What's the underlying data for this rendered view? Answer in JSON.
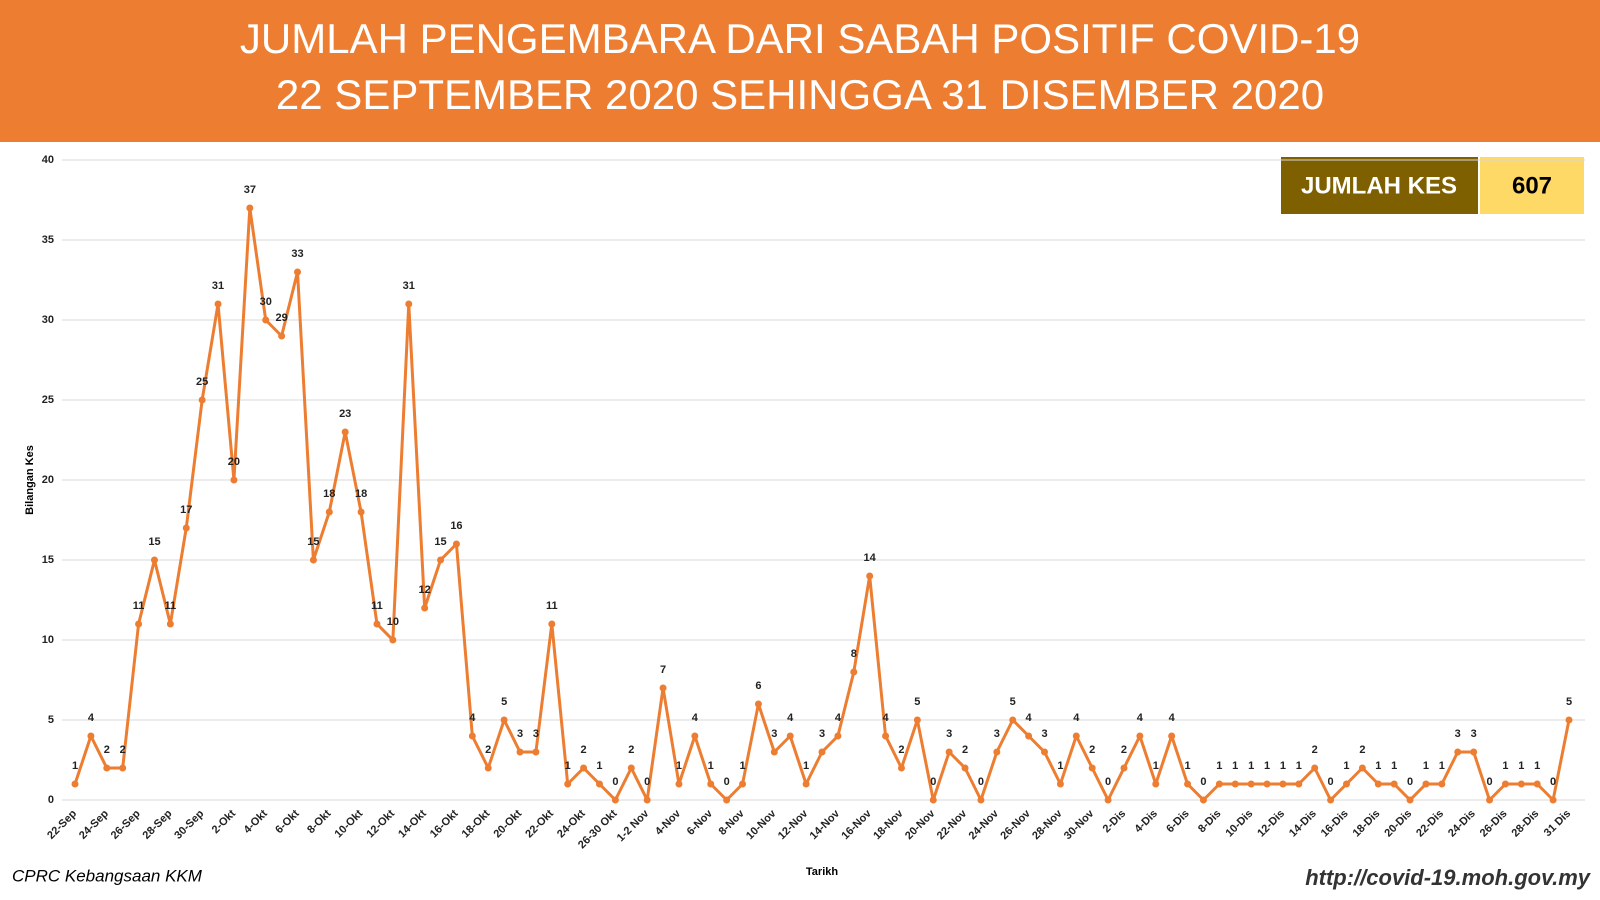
{
  "chart_data": {
    "type": "line",
    "title": "JUMLAH PENGEMBARA DARI SABAH POSITIF COVID-19",
    "subtitle": "22 SEPTEMBER 2020 SEHINGGA 31 DISEMBER 2020",
    "total_label": "JUMLAH KES",
    "total": 607,
    "xlabel": "Tarikh",
    "ylabel": "Bilangan Kes",
    "source": "CPRC Kebangsaan KKM",
    "url": "http://covid-19.moh.gov.my",
    "color": "#ED7D31",
    "grid": true,
    "ylim": [
      0,
      40
    ],
    "yticks": [
      0,
      5,
      10,
      15,
      20,
      25,
      30,
      35,
      40
    ],
    "categories": [
      "22-Sep",
      null,
      "24-Sep",
      null,
      "26-Sep",
      null,
      "28-Sep",
      null,
      "30-Sep",
      null,
      "2-Okt",
      null,
      "4-Okt",
      null,
      "6-Okt",
      null,
      "8-Okt",
      null,
      "10-Okt",
      null,
      "12-Okt",
      null,
      "14-Okt",
      null,
      "16-Okt",
      null,
      "18-Okt",
      null,
      "20-Okt",
      null,
      "22-Okt",
      null,
      "24-Okt",
      null,
      "26-30 Okt",
      null,
      "1-2 Nov",
      null,
      "4-Nov",
      null,
      "6-Nov",
      null,
      "8-Nov",
      null,
      "10-Nov",
      null,
      "12-Nov",
      null,
      "14-Nov",
      null,
      "16-Nov",
      null,
      "18-Nov",
      null,
      "20-Nov",
      null,
      "22-Nov",
      null,
      "24-Nov",
      null,
      "26-Nov",
      null,
      "28-Nov",
      null,
      "30-Nov",
      null,
      "2-Dis",
      null,
      "4-Dis",
      null,
      "6-Dis",
      null,
      "8-Dis",
      null,
      "10-Dis",
      null,
      "12-Dis",
      null,
      "14-Dis",
      null,
      "16-Dis",
      null,
      "18-Dis",
      null,
      "20-Dis",
      null,
      "22-Dis",
      null,
      "24-Dis",
      null,
      "26-Dis",
      null,
      "28-Dis",
      null,
      "31 Dis"
    ],
    "values": [
      1,
      4,
      2,
      2,
      11,
      15,
      11,
      17,
      25,
      31,
      20,
      37,
      30,
      29,
      33,
      15,
      18,
      23,
      18,
      11,
      10,
      31,
      12,
      15,
      16,
      4,
      2,
      5,
      3,
      3,
      11,
      1,
      2,
      1,
      0,
      2,
      0,
      7,
      1,
      4,
      1,
      0,
      1,
      6,
      3,
      4,
      1,
      3,
      4,
      8,
      14,
      4,
      2,
      5,
      0,
      3,
      2,
      0,
      3,
      5,
      4,
      3,
      1,
      4,
      2,
      0,
      2,
      4,
      1,
      4,
      1,
      0,
      1,
      1,
      1,
      1,
      1,
      1,
      2,
      0,
      1,
      2,
      1,
      1,
      0,
      1,
      1,
      3,
      3,
      0,
      1,
      1,
      1,
      0,
      5
    ]
  }
}
